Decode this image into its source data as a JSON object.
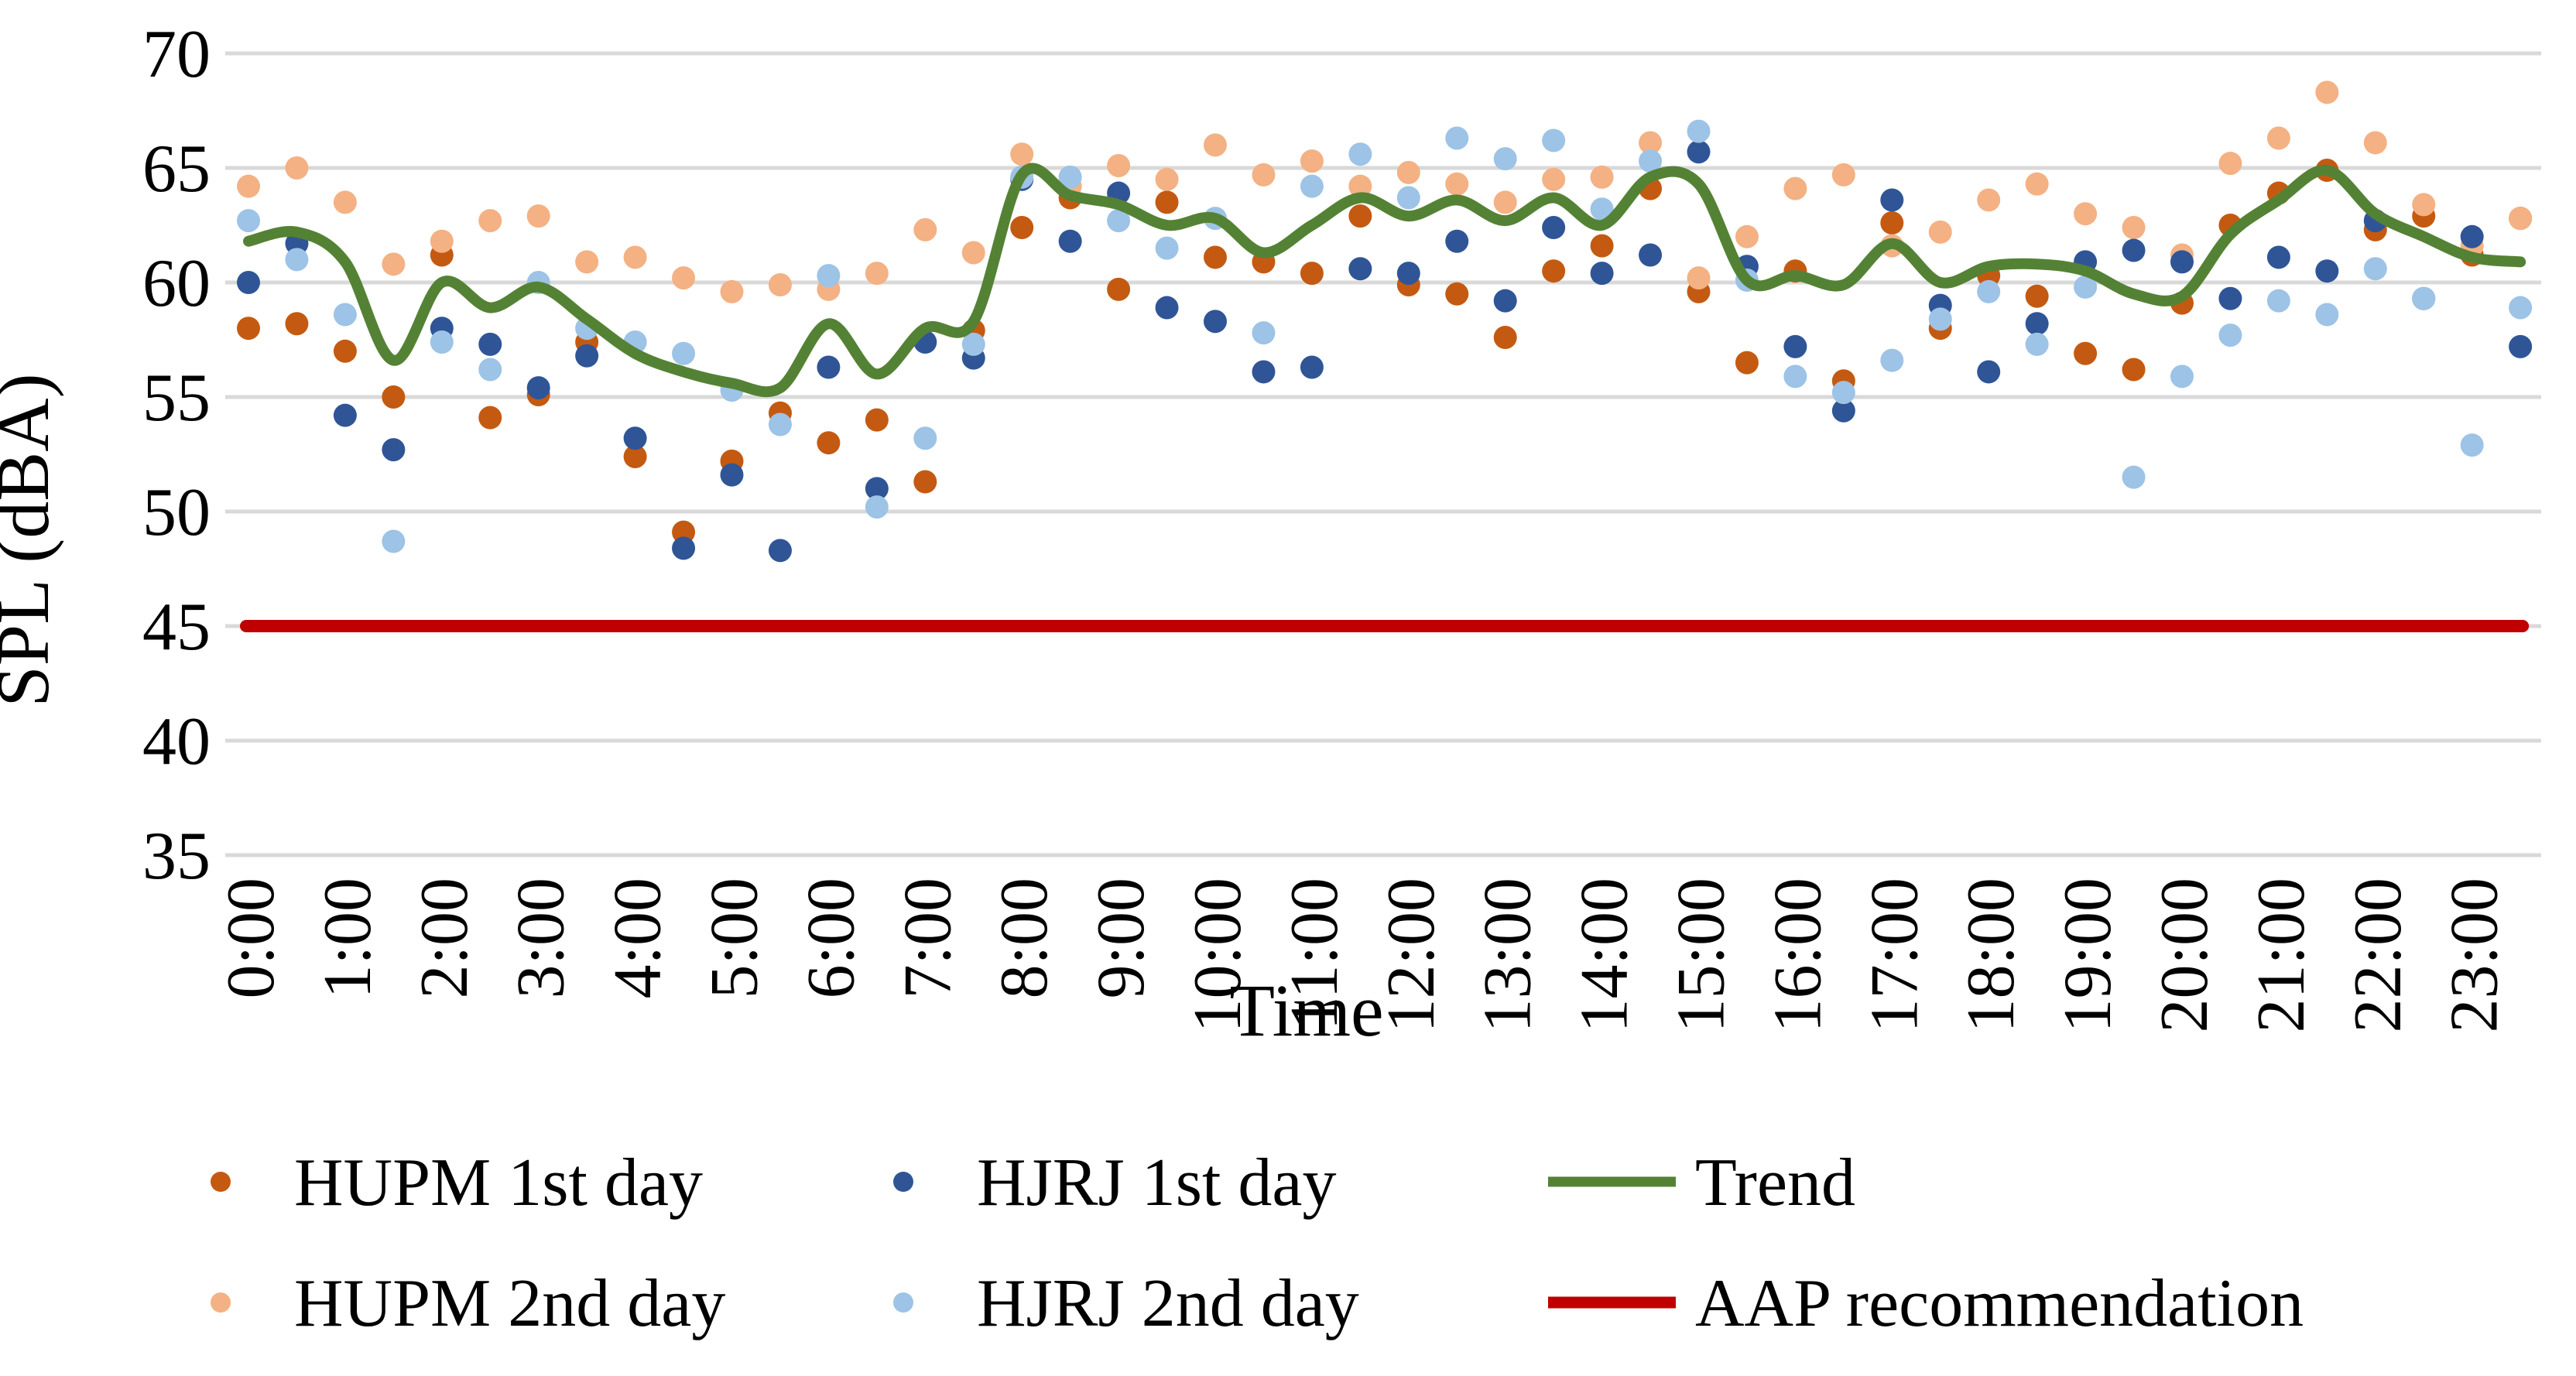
{
  "chart": {
    "y_axis": {
      "title": "SPL (dBA)",
      "ticks": [
        70,
        65,
        60,
        55,
        50,
        45,
        40,
        35
      ],
      "min": 35,
      "max": 70
    },
    "x_axis": {
      "title": "Time",
      "tick_labels": [
        "0:00",
        "1:00",
        "2:00",
        "3:00",
        "4:00",
        "5:00",
        "6:00",
        "7:00",
        "8:00",
        "9:00",
        "10:00",
        "11:00",
        "12:00",
        "13:00",
        "14:00",
        "15:00",
        "16:00",
        "17:00",
        "18:00",
        "19:00",
        "20:00",
        "21:00",
        "22:00",
        "23:00"
      ]
    },
    "colors": {
      "hupm_1st": "#C45A11",
      "hupm_2nd": "#F4B183",
      "hjrj_1st": "#2F5597",
      "hjrj_2nd": "#9DC3E6",
      "trend": "#548235",
      "aap": "#C00000",
      "gridline": "#D9D9D9",
      "text": "#000000"
    },
    "legend": [
      {
        "label": "HUPM 1st day",
        "marker": "dot",
        "color": "#C45A11"
      },
      {
        "label": "HUPM 2nd day",
        "marker": "dot",
        "color": "#F4B183"
      },
      {
        "label": "HJRJ 1st day",
        "marker": "dot",
        "color": "#2F5597"
      },
      {
        "label": "HJRJ 2nd day",
        "marker": "dot",
        "color": "#9DC3E6"
      },
      {
        "label": "Trend",
        "marker": "line",
        "color": "#548235"
      },
      {
        "label": "AAP recommendation",
        "marker": "line",
        "color": "#C00000"
      }
    ]
  },
  "chart_data": {
    "type": "scatter",
    "title": "",
    "xlabel": "Time",
    "ylabel": "SPL (dBA)",
    "ylim": [
      35,
      70
    ],
    "grid": "horizontal",
    "legend_position": "bottom",
    "x_hours": [
      0,
      0.5,
      1,
      1.5,
      2,
      2.5,
      3,
      3.5,
      4,
      4.5,
      5,
      5.5,
      6,
      6.5,
      7,
      7.5,
      8,
      8.5,
      9,
      9.5,
      10,
      10.5,
      11,
      11.5,
      12,
      12.5,
      13,
      13.5,
      14,
      14.5,
      15,
      15.5,
      16,
      16.5,
      17,
      17.5,
      18,
      18.5,
      19,
      19.5,
      20,
      20.5,
      21,
      21.5,
      22,
      22.5,
      23,
      23.5
    ],
    "series": [
      {
        "name": "HUPM 1st day",
        "type": "scatter",
        "color": "#C45A11",
        "values": [
          58.0,
          58.2,
          57.0,
          55.0,
          61.2,
          54.1,
          55.1,
          57.4,
          52.4,
          49.1,
          52.2,
          54.3,
          53.0,
          54.0,
          51.3,
          57.9,
          62.4,
          63.7,
          59.7,
          63.5,
          61.1,
          60.9,
          60.4,
          62.9,
          59.9,
          59.5,
          57.6,
          60.5,
          61.6,
          64.1,
          59.6,
          56.5,
          60.5,
          55.7,
          62.6,
          58.0,
          60.3,
          59.4,
          56.9,
          56.2,
          59.1,
          62.5,
          63.9,
          64.9,
          62.3,
          62.9,
          61.2,
          62.8
        ]
      },
      {
        "name": "HUPM 2nd day",
        "type": "scatter",
        "color": "#F4B183",
        "values": [
          64.2,
          65.0,
          63.5,
          60.8,
          61.8,
          62.7,
          62.9,
          60.9,
          61.1,
          60.2,
          59.6,
          59.9,
          59.7,
          60.4,
          62.3,
          61.3,
          65.6,
          64.2,
          65.1,
          64.5,
          66.0,
          64.7,
          65.3,
          64.2,
          64.8,
          64.3,
          63.5,
          64.5,
          64.6,
          66.1,
          60.2,
          62.0,
          64.1,
          64.7,
          61.6,
          62.2,
          63.6,
          64.3,
          63.0,
          62.4,
          61.2,
          65.2,
          66.3,
          68.3,
          66.1,
          63.4,
          61.6,
          62.8
        ]
      },
      {
        "name": "HJRJ 1st day",
        "type": "scatter",
        "color": "#2F5597",
        "values": [
          60.0,
          61.7,
          54.2,
          52.7,
          58.0,
          57.3,
          55.4,
          56.8,
          53.2,
          48.4,
          51.6,
          48.3,
          56.3,
          51.0,
          57.4,
          56.7,
          64.5,
          61.8,
          63.9,
          58.9,
          58.3,
          56.1,
          56.3,
          60.6,
          60.4,
          61.8,
          59.2,
          62.4,
          60.4,
          61.2,
          65.7,
          60.7,
          57.2,
          54.4,
          63.6,
          59.0,
          56.1,
          58.2,
          60.9,
          61.4,
          60.9,
          59.3,
          61.1,
          60.5,
          62.7,
          59.3,
          62.0,
          57.2
        ]
      },
      {
        "name": "HJRJ 2nd day",
        "type": "scatter",
        "color": "#9DC3E6",
        "values": [
          62.7,
          61.0,
          58.6,
          48.7,
          57.4,
          56.2,
          60.0,
          58.0,
          57.4,
          56.9,
          55.3,
          53.8,
          60.3,
          50.2,
          53.2,
          57.3,
          64.6,
          64.6,
          62.7,
          61.5,
          62.8,
          57.8,
          64.2,
          65.6,
          63.7,
          66.3,
          65.4,
          66.2,
          63.2,
          65.3,
          66.6,
          60.1,
          55.9,
          55.2,
          56.6,
          58.4,
          59.6,
          57.3,
          59.8,
          51.5,
          55.9,
          57.7,
          59.2,
          58.6,
          60.6,
          59.3,
          52.9,
          58.9
        ]
      },
      {
        "name": "Trend",
        "type": "line",
        "color": "#548235",
        "values": [
          61.8,
          62.2,
          60.9,
          56.6,
          60.0,
          58.9,
          59.8,
          58.4,
          56.9,
          56.1,
          55.6,
          55.4,
          58.2,
          56.0,
          58.0,
          58.3,
          64.7,
          63.8,
          63.4,
          62.5,
          62.8,
          61.3,
          62.5,
          63.7,
          62.9,
          63.6,
          62.7,
          63.7,
          62.5,
          64.6,
          64.3,
          60.1,
          60.3,
          59.9,
          61.7,
          60.0,
          60.7,
          60.8,
          60.5,
          59.5,
          59.4,
          62.1,
          63.6,
          64.9,
          63.0,
          62.0,
          61.1,
          60.9
        ]
      },
      {
        "name": "AAP recommendation",
        "type": "hline",
        "color": "#C00000",
        "value": 45.0
      }
    ]
  }
}
